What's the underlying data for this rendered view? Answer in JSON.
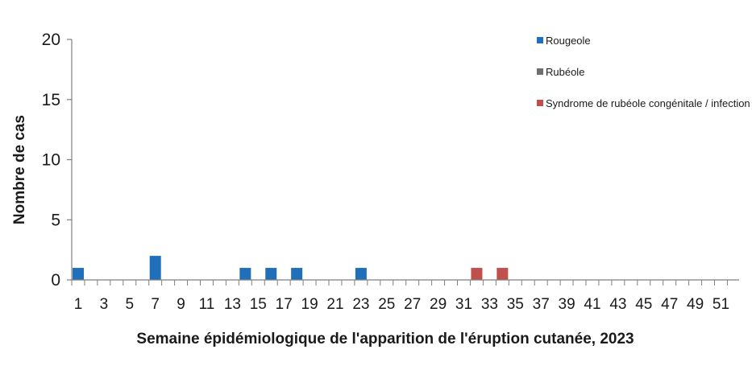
{
  "chart_data": {
    "type": "bar",
    "title": "",
    "xlabel": "Semaine épidémiologique de l'apparition de l'éruption cutanée, 2023",
    "ylabel": "Nombre de cas",
    "ylim": [
      0,
      20
    ],
    "yticks": [
      0,
      5,
      10,
      15,
      20
    ],
    "x_range": [
      1,
      52
    ],
    "xtick_labels": [
      "1",
      "3",
      "5",
      "7",
      "9",
      "11",
      "13",
      "15",
      "17",
      "19",
      "21",
      "23",
      "25",
      "27",
      "29",
      "31",
      "33",
      "35",
      "37",
      "39",
      "41",
      "43",
      "45",
      "47",
      "49",
      "51"
    ],
    "grid": false,
    "stacked": true,
    "legend_position": "top-right",
    "series": [
      {
        "name": "Rougeole",
        "color": "#1f6fba",
        "points": [
          {
            "x": 1,
            "y": 1
          },
          {
            "x": 7,
            "y": 2
          },
          {
            "x": 14,
            "y": 1
          },
          {
            "x": 16,
            "y": 1
          },
          {
            "x": 18,
            "y": 1
          },
          {
            "x": 23,
            "y": 1
          }
        ]
      },
      {
        "name": "Rubéole",
        "color": "#6e6e6e",
        "points": []
      },
      {
        "name": "Syndrome de rubéole congénitale / infection",
        "color": "#c0504d",
        "points": [
          {
            "x": 32,
            "y": 1
          },
          {
            "x": 34,
            "y": 1
          }
        ]
      }
    ]
  }
}
